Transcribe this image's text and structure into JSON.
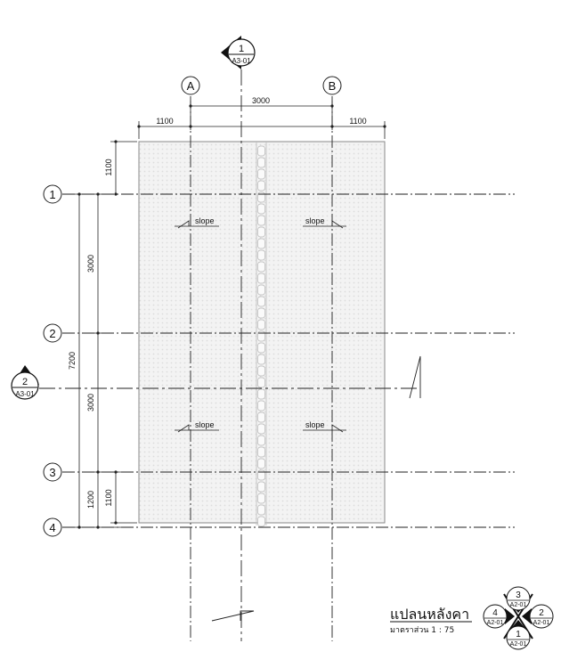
{
  "drawing": {
    "title": "แปลนหลังคา",
    "scale": "มาตราส่วน  1 : 75"
  },
  "grid": {
    "columns": [
      "A",
      "B"
    ],
    "rows": [
      "1",
      "2",
      "3",
      "4"
    ]
  },
  "dimensions": {
    "top_left_overhang": "1100",
    "top_span": "3000",
    "top_right_overhang": "1100",
    "left_top_overhang": "1100",
    "left_span_1": "3000",
    "left_span_2": "3000",
    "left_bottom_total": "1200",
    "left_bottom_overhang": "1100",
    "left_total": "7200"
  },
  "slope_labels": [
    "slope",
    "slope",
    "slope",
    "slope"
  ],
  "section_markers": {
    "top": {
      "number": "1",
      "sheet": "A3-01"
    },
    "left": {
      "number": "2",
      "sheet": "A3-01"
    }
  },
  "elevation_marker": {
    "top": {
      "number": "3",
      "sheet": "A2-01"
    },
    "left": {
      "number": "4",
      "sheet": "A2-01"
    },
    "right": {
      "number": "2",
      "sheet": "A2-01"
    },
    "bottom": {
      "number": "1",
      "sheet": "A2-01"
    }
  }
}
